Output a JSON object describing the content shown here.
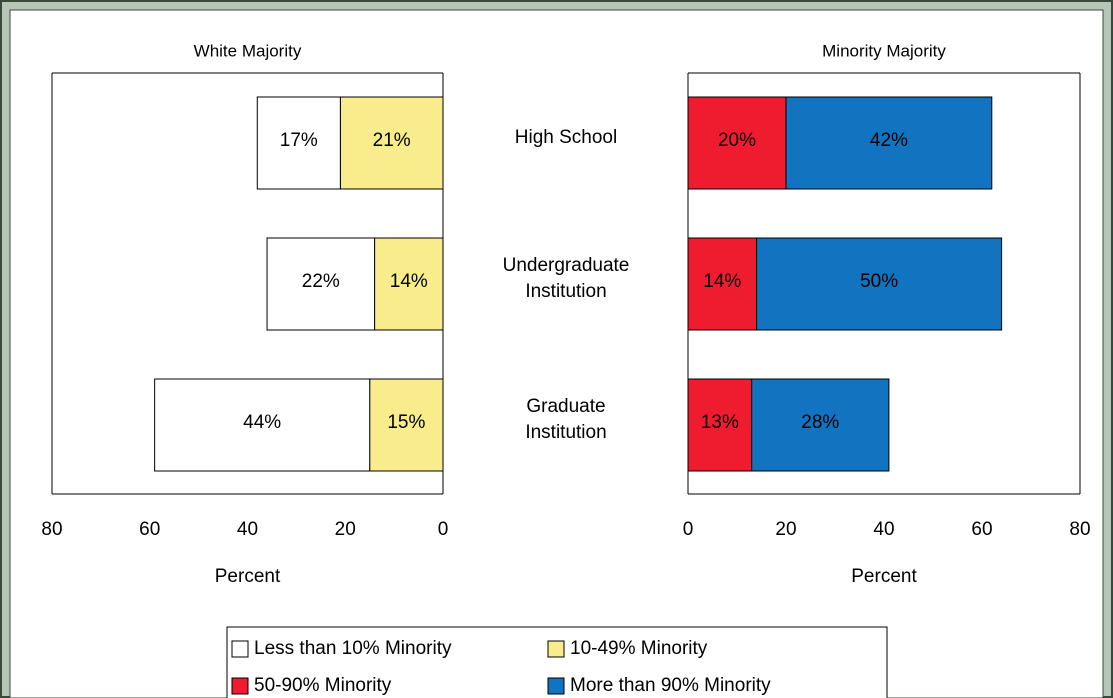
{
  "chart_data": {
    "type": "bar",
    "orientation": "horizontal",
    "categories": [
      [
        "High School"
      ],
      [
        "Undergraduate",
        "Institution"
      ],
      [
        "Graduate",
        "Institution"
      ]
    ],
    "panels": [
      {
        "title": "White Majority",
        "xlabel": "Percent",
        "xlim": [
          80,
          0
        ],
        "xticks": [
          80,
          60,
          40,
          20,
          0
        ],
        "series": [
          {
            "name": "Less than 10% Minority",
            "color": "#ffffff",
            "values": [
              17,
              22,
              44
            ],
            "value_labels": [
              "17%",
              "22%",
              "44%"
            ]
          },
          {
            "name": "10-49% Minority",
            "color": "#f8ec8c",
            "values": [
              21,
              14,
              15
            ],
            "value_labels": [
              "21%",
              "14%",
              "15%"
            ]
          }
        ]
      },
      {
        "title": "Minority Majority",
        "xlabel": "Percent",
        "xlim": [
          0,
          80
        ],
        "xticks": [
          0,
          20,
          40,
          60,
          80
        ],
        "series": [
          {
            "name": "50-90% Minority",
            "color": "#ee1c2e",
            "values": [
              20,
              14,
              13
            ],
            "value_labels": [
              "20%",
              "14%",
              "13%"
            ]
          },
          {
            "name": "More than 90% Minority",
            "color": "#1273c0",
            "values": [
              42,
              50,
              28
            ],
            "value_labels": [
              "42%",
              "50%",
              "28%"
            ]
          }
        ]
      }
    ]
  }
}
